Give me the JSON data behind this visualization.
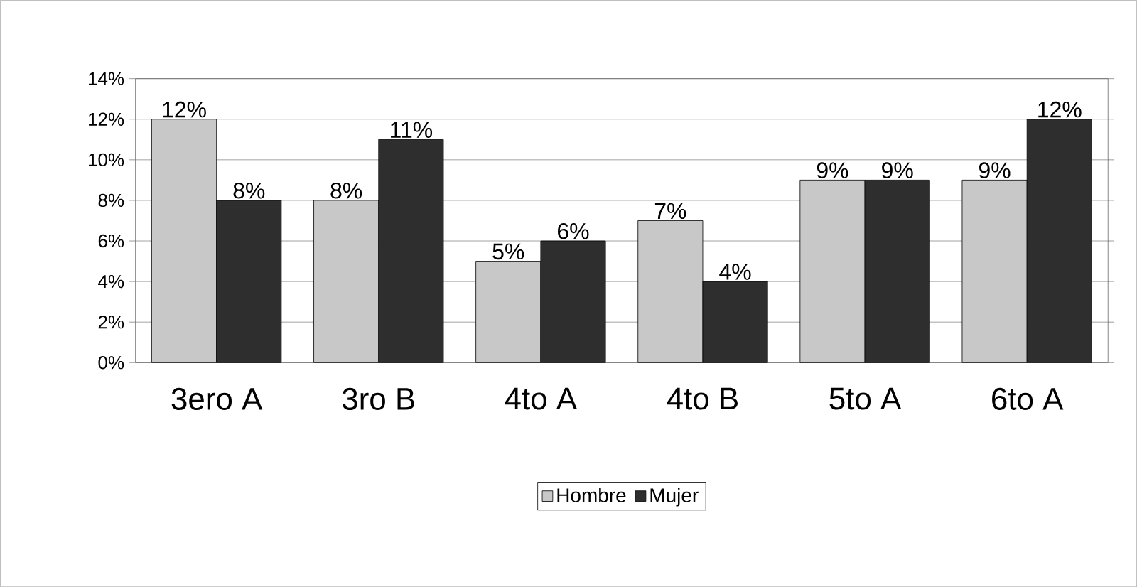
{
  "chart_data": {
    "type": "bar",
    "categories": [
      "3ero A",
      "3ro B",
      "4to A",
      "4to B",
      "5to A",
      "6to A"
    ],
    "series": [
      {
        "name": "Hombre",
        "color": "#c8c8c8",
        "values": [
          12,
          8,
          5,
          7,
          9,
          9
        ],
        "value_labels": [
          "12%",
          "8%",
          "5%",
          "7%",
          "9%",
          "9%"
        ]
      },
      {
        "name": "Mujer",
        "color": "#2e2e2e",
        "values": [
          8,
          11,
          6,
          4,
          9,
          12
        ],
        "value_labels": [
          "8%",
          "11%",
          "6%",
          "4%",
          "9%",
          "12%"
        ]
      }
    ],
    "ylim": [
      0,
      14
    ],
    "yticks": [
      {
        "value": 0,
        "label": "0%"
      },
      {
        "value": 2,
        "label": "2%"
      },
      {
        "value": 4,
        "label": "4%"
      },
      {
        "value": 6,
        "label": "6%"
      },
      {
        "value": 8,
        "label": "8%"
      },
      {
        "value": 10,
        "label": "10%"
      },
      {
        "value": 12,
        "label": "12%"
      },
      {
        "value": 14,
        "label": "14%"
      }
    ],
    "grid": "y",
    "legend": "bottom"
  }
}
